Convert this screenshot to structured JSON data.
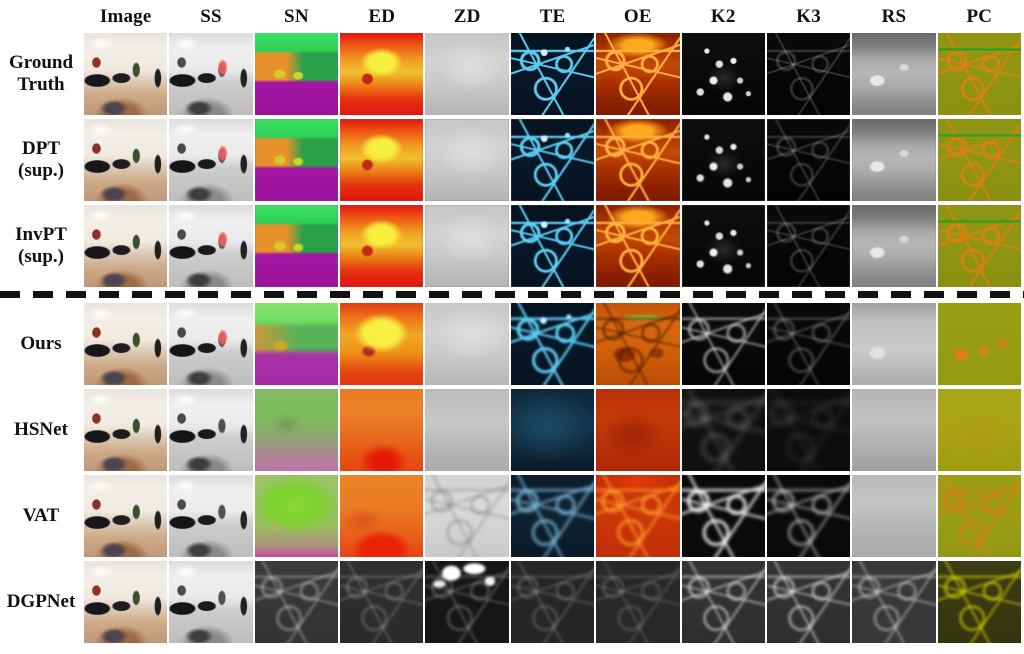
{
  "figure": {
    "kind": "qualitative-comparison-grid",
    "columns": [
      {
        "key": "image",
        "label": "Image"
      },
      {
        "key": "ss",
        "label": "SS"
      },
      {
        "key": "sn",
        "label": "SN"
      },
      {
        "key": "ed",
        "label": "ED"
      },
      {
        "key": "zd",
        "label": "ZD"
      },
      {
        "key": "te",
        "label": "TE"
      },
      {
        "key": "oe",
        "label": "OE"
      },
      {
        "key": "k2",
        "label": "K2"
      },
      {
        "key": "k3",
        "label": "K3"
      },
      {
        "key": "rs",
        "label": "RS"
      },
      {
        "key": "pc",
        "label": "PC"
      }
    ],
    "row_groups": [
      {
        "rows": [
          {
            "key": "gt",
            "label": "Ground Truth"
          },
          {
            "key": "dpt",
            "label": "DPT (sup.)"
          },
          {
            "key": "invpt",
            "label": "InvPT (sup.)"
          }
        ]
      },
      {
        "rows": [
          {
            "key": "ours",
            "label": "Ours"
          },
          {
            "key": "hsnet",
            "label": "HSNet"
          },
          {
            "key": "vat",
            "label": "VAT"
          },
          {
            "key": "dgpnet",
            "label": "DGPNet"
          }
        ]
      }
    ],
    "divider": {
      "style": "dashed",
      "color": "#121212"
    },
    "palette": {
      "sn_ceiling_green": "#35d95e",
      "sn_wall_orange": "#e8912c",
      "sn_floor_purple": "#9b129b",
      "ed_near_red": "#e01410",
      "ed_far_yellow": "#f6e83a",
      "zd_gray": "#c8c8c8",
      "te_background_navy": "#08182a",
      "te_edge_cyan": "#5cccf2",
      "oe_background_red": "#9c2800",
      "oe_edge_orange": "#ffa81e",
      "k_background_black": "#0a0a0a",
      "rs_gray": "#a8a8a8",
      "pc_olive": "#8f9412",
      "pc_edge_orange": "#d8820f",
      "ss_highlight_red": "#ee6060"
    }
  }
}
